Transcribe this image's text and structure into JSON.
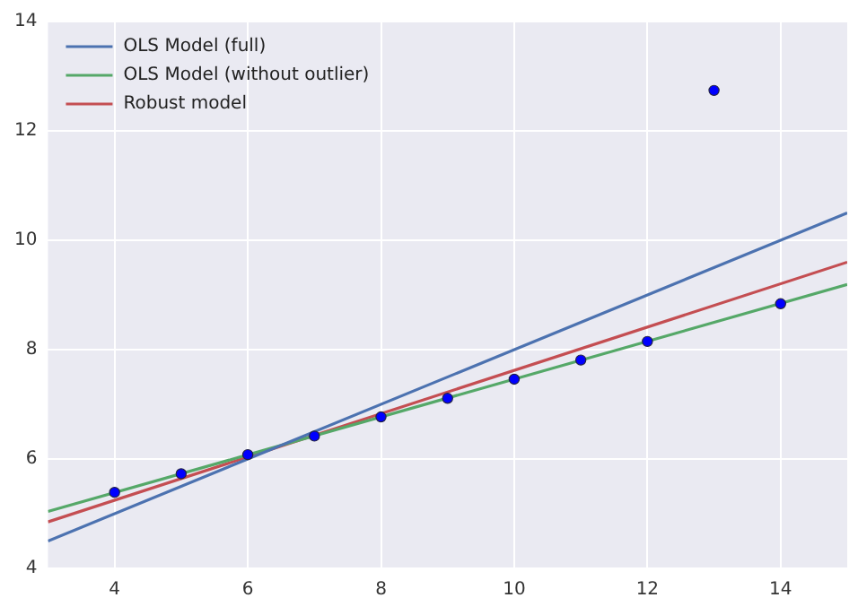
{
  "chart_data": {
    "type": "scatter",
    "xlim": [
      3,
      15
    ],
    "ylim": [
      4,
      14
    ],
    "xticks": [
      4,
      6,
      8,
      10,
      12,
      14
    ],
    "yticks": [
      4,
      6,
      8,
      10,
      12,
      14
    ],
    "grid": true,
    "legend": "top left",
    "series": [
      {
        "type": "scatter",
        "marker": "circle",
        "color": "#0000ff",
        "x": [
          10,
          8,
          13,
          9,
          11,
          14,
          6,
          4,
          12,
          7,
          5
        ],
        "values": [
          7.46,
          6.77,
          12.74,
          7.11,
          7.81,
          8.84,
          6.08,
          5.39,
          8.15,
          6.42,
          5.73
        ]
      },
      {
        "type": "line",
        "name": "OLS Model (full)",
        "color": "#4c72b0",
        "x": [
          3,
          15
        ],
        "values": [
          4.5,
          10.5
        ]
      },
      {
        "type": "line",
        "name": "OLS Model (without outlier)",
        "color": "#55a868",
        "x": [
          3,
          15
        ],
        "values": [
          5.04,
          9.19
        ]
      },
      {
        "type": "line",
        "name": "Robust model",
        "color": "#c44e52",
        "x": [
          3,
          15
        ],
        "values": [
          4.85,
          9.6
        ]
      }
    ]
  }
}
